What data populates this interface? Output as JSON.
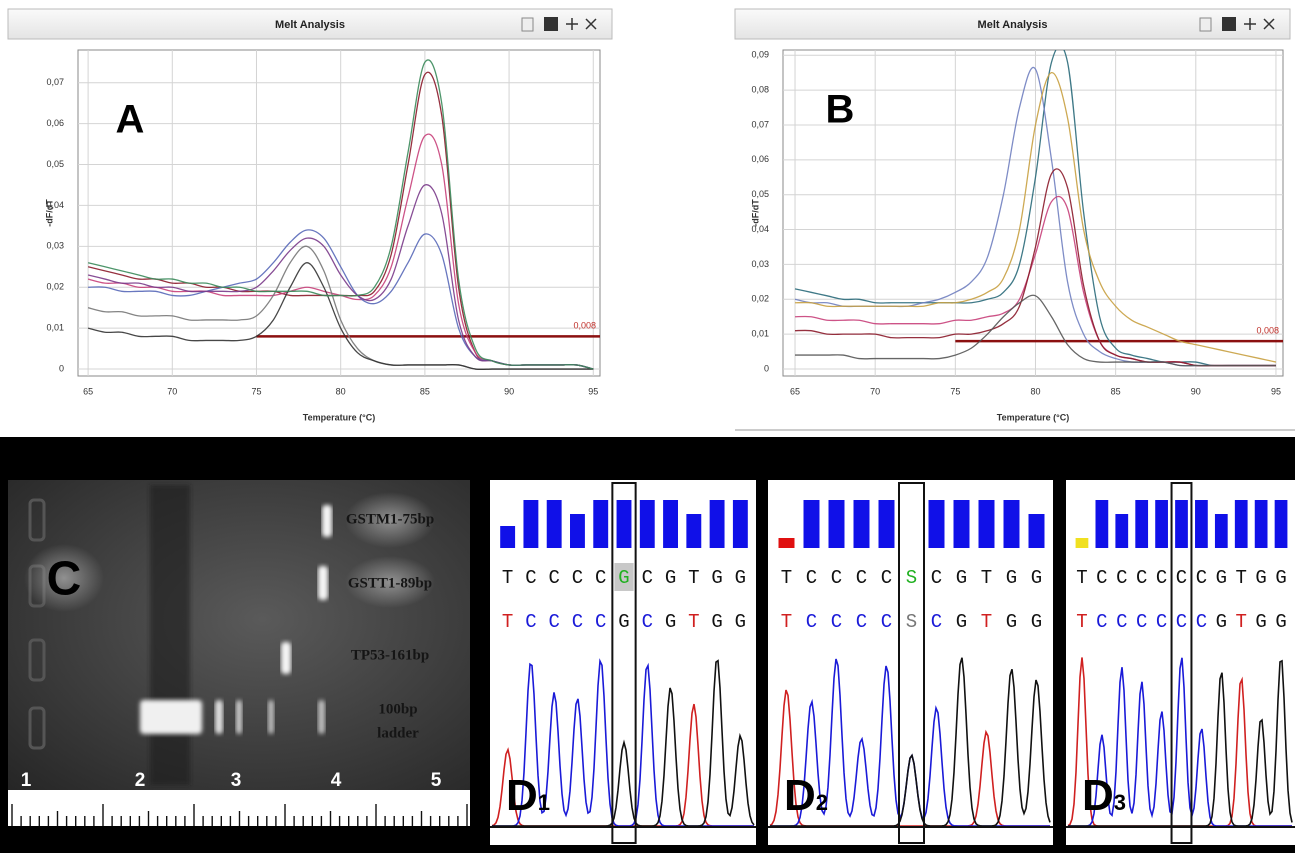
{
  "chart_data": [
    {
      "type": "line",
      "title": "Melt Analysis",
      "panel_label": "A",
      "xlabel": "Temperature (°C)",
      "ylabel": "-dF/dT",
      "x": [
        65,
        66,
        67,
        68,
        69,
        70,
        71,
        72,
        73,
        74,
        75,
        76,
        77,
        78,
        79,
        80,
        81,
        82,
        83,
        84,
        85,
        86,
        87,
        88,
        89,
        90,
        91,
        92,
        93,
        94,
        95
      ],
      "xlim": [
        64.4,
        95.4
      ],
      "ylim": [
        -0.0017,
        0.078
      ],
      "xticks": [
        65,
        70,
        75,
        80,
        85,
        90,
        95
      ],
      "yticks": [
        0,
        {
          "value": 0.01,
          "label": "0,01"
        },
        {
          "value": 0.02,
          "label": "0,02"
        },
        {
          "value": 0.03,
          "label": "0,03"
        },
        {
          "value": 0.04,
          "label": "0,04"
        },
        {
          "value": 0.05,
          "label": "0,05"
        },
        {
          "value": 0.06,
          "label": "0,06"
        },
        {
          "value": 0.07,
          "label": "0,07"
        }
      ],
      "grid": true,
      "threshold": {
        "value": 0.008,
        "label": "0,008",
        "x_start": 75
      },
      "series": [
        {
          "color": "#8b1a2a",
          "values": [
            0.025,
            0.024,
            0.023,
            0.022,
            0.022,
            0.021,
            0.021,
            0.02,
            0.02,
            0.019,
            0.019,
            0.019,
            0.018,
            0.018,
            0.018,
            0.018,
            0.018,
            0.019,
            0.028,
            0.05,
            0.072,
            0.062,
            0.02,
            0.004,
            0.002,
            0.001,
            0.001,
            0.001,
            0.001,
            0.001,
            0.0
          ]
        },
        {
          "color": "#c8407a",
          "values": [
            0.022,
            0.021,
            0.021,
            0.02,
            0.02,
            0.019,
            0.019,
            0.019,
            0.018,
            0.018,
            0.018,
            0.018,
            0.019,
            0.02,
            0.019,
            0.018,
            0.017,
            0.018,
            0.025,
            0.042,
            0.057,
            0.05,
            0.016,
            0.004,
            0.002,
            0.001,
            0.001,
            0.001,
            0.001,
            0.001,
            0.0
          ]
        },
        {
          "color": "#5868b8",
          "values": [
            0.02,
            0.02,
            0.019,
            0.019,
            0.019,
            0.018,
            0.018,
            0.019,
            0.02,
            0.021,
            0.022,
            0.026,
            0.031,
            0.034,
            0.032,
            0.025,
            0.018,
            0.016,
            0.019,
            0.026,
            0.033,
            0.028,
            0.01,
            0.003,
            0.002,
            0.001,
            0.001,
            0.001,
            0.001,
            0.001,
            0.0
          ]
        },
        {
          "color": "#7a3a8a",
          "values": [
            0.023,
            0.022,
            0.021,
            0.021,
            0.02,
            0.02,
            0.019,
            0.019,
            0.019,
            0.019,
            0.02,
            0.024,
            0.029,
            0.032,
            0.03,
            0.023,
            0.018,
            0.017,
            0.022,
            0.035,
            0.045,
            0.038,
            0.012,
            0.003,
            0.002,
            0.001,
            0.001,
            0.001,
            0.001,
            0.001,
            0.0
          ]
        },
        {
          "color": "#777777",
          "values": [
            0.015,
            0.014,
            0.014,
            0.013,
            0.013,
            0.013,
            0.012,
            0.012,
            0.012,
            0.012,
            0.013,
            0.018,
            0.026,
            0.03,
            0.024,
            0.012,
            0.005,
            0.002,
            0.001,
            0.001,
            0.001,
            0.001,
            0.001,
            0.0,
            0.0,
            0.0,
            0.0,
            0.0,
            0.0,
            0.0,
            0.0
          ]
        },
        {
          "color": "#333333",
          "values": [
            0.01,
            0.009,
            0.009,
            0.008,
            0.008,
            0.008,
            0.007,
            0.007,
            0.007,
            0.007,
            0.008,
            0.012,
            0.02,
            0.026,
            0.02,
            0.01,
            0.004,
            0.002,
            0.001,
            0.001,
            0.001,
            0.001,
            0.001,
            0.0,
            0.0,
            0.0,
            0.0,
            0.0,
            0.0,
            0.0,
            0.0
          ]
        },
        {
          "color": "#3a8a5a",
          "values": [
            0.026,
            0.025,
            0.024,
            0.023,
            0.022,
            0.022,
            0.021,
            0.021,
            0.02,
            0.02,
            0.019,
            0.019,
            0.019,
            0.019,
            0.018,
            0.018,
            0.018,
            0.02,
            0.03,
            0.053,
            0.075,
            0.065,
            0.022,
            0.005,
            0.002,
            0.001,
            0.001,
            0.001,
            0.001,
            0.001,
            0.0
          ]
        }
      ]
    },
    {
      "type": "line",
      "title": "Melt Analysis",
      "panel_label": "B",
      "xlabel": "Temperature (°C)",
      "ylabel": "-dF/dT",
      "x": [
        65,
        66,
        67,
        68,
        69,
        70,
        71,
        72,
        73,
        74,
        75,
        76,
        77,
        78,
        79,
        80,
        81,
        82,
        83,
        84,
        85,
        86,
        87,
        88,
        89,
        90,
        91,
        92,
        93,
        94,
        95
      ],
      "xlim": [
        64.25,
        95.44
      ],
      "ylim": [
        -0.002,
        0.0915
      ],
      "xticks": [
        65,
        70,
        75,
        80,
        85,
        90,
        95
      ],
      "yticks": [
        0,
        {
          "value": 0.01,
          "label": "0,01"
        },
        {
          "value": 0.02,
          "label": "0,02"
        },
        {
          "value": 0.03,
          "label": "0,03"
        },
        {
          "value": 0.04,
          "label": "0,04"
        },
        {
          "value": 0.05,
          "label": "0,05"
        },
        {
          "value": 0.06,
          "label": "0,06"
        },
        {
          "value": 0.07,
          "label": "0,07"
        },
        {
          "value": 0.08,
          "label": "0,08"
        },
        {
          "value": 0.09,
          "label": "0,09"
        }
      ],
      "grid": true,
      "threshold": {
        "value": 0.008,
        "label": "0,008",
        "x_start": 75
      },
      "series": [
        {
          "color": "#2a6a7a",
          "values": [
            0.023,
            0.022,
            0.021,
            0.02,
            0.02,
            0.019,
            0.019,
            0.019,
            0.019,
            0.019,
            0.019,
            0.019,
            0.02,
            0.022,
            0.03,
            0.055,
            0.088,
            0.088,
            0.045,
            0.015,
            0.006,
            0.004,
            0.003,
            0.002,
            0.002,
            0.002,
            0.001,
            0.001,
            0.001,
            0.001,
            0.001
          ]
        },
        {
          "color": "#7080c0",
          "values": [
            0.02,
            0.019,
            0.019,
            0.018,
            0.018,
            0.018,
            0.018,
            0.018,
            0.019,
            0.02,
            0.022,
            0.025,
            0.032,
            0.05,
            0.075,
            0.086,
            0.06,
            0.025,
            0.01,
            0.005,
            0.003,
            0.002,
            0.002,
            0.002,
            0.001,
            0.001,
            0.001,
            0.001,
            0.001,
            0.001,
            0.001
          ]
        },
        {
          "color": "#c8407a",
          "values": [
            0.015,
            0.015,
            0.014,
            0.014,
            0.014,
            0.013,
            0.013,
            0.013,
            0.013,
            0.013,
            0.014,
            0.014,
            0.015,
            0.016,
            0.02,
            0.033,
            0.048,
            0.046,
            0.022,
            0.008,
            0.004,
            0.003,
            0.002,
            0.002,
            0.002,
            0.001,
            0.001,
            0.001,
            0.001,
            0.001,
            0.001
          ]
        },
        {
          "color": "#8b1a2a",
          "values": [
            0.011,
            0.011,
            0.01,
            0.01,
            0.01,
            0.01,
            0.009,
            0.009,
            0.009,
            0.009,
            0.01,
            0.01,
            0.011,
            0.013,
            0.018,
            0.035,
            0.056,
            0.052,
            0.024,
            0.008,
            0.004,
            0.003,
            0.002,
            0.002,
            0.002,
            0.001,
            0.001,
            0.001,
            0.001,
            0.001,
            0.001
          ]
        },
        {
          "color": "#c8a040",
          "values": [
            0.019,
            0.019,
            0.018,
            0.018,
            0.018,
            0.018,
            0.018,
            0.018,
            0.018,
            0.019,
            0.019,
            0.02,
            0.022,
            0.026,
            0.04,
            0.07,
            0.085,
            0.072,
            0.04,
            0.025,
            0.018,
            0.014,
            0.012,
            0.01,
            0.008,
            0.007,
            0.006,
            0.005,
            0.004,
            0.003,
            0.002
          ]
        },
        {
          "color": "#555555",
          "values": [
            0.004,
            0.004,
            0.004,
            0.004,
            0.003,
            0.003,
            0.003,
            0.003,
            0.003,
            0.003,
            0.004,
            0.006,
            0.01,
            0.015,
            0.019,
            0.021,
            0.015,
            0.007,
            0.003,
            0.002,
            0.002,
            0.002,
            0.002,
            0.002,
            0.001,
            0.001,
            0.001,
            0.001,
            0.001,
            0.001,
            0.001
          ]
        }
      ]
    }
  ],
  "gel": {
    "panel_label": "C",
    "band_labels": [
      "GSTM1-75bp",
      "GSTT1-89bp",
      "TP53-161bp"
    ],
    "ladder_label": [
      "100bp",
      "ladder"
    ],
    "ruler": [
      "1",
      "2",
      "3",
      "4",
      "5"
    ]
  },
  "chromatograms": [
    {
      "letter": "D",
      "subscript": "1",
      "top": [
        "T",
        "C",
        "C",
        "C",
        "C",
        "G",
        "C",
        "G",
        "T",
        "G",
        "G"
      ],
      "bottom": [
        "T",
        "C",
        "C",
        "C",
        "C",
        "G",
        "C",
        "G",
        "T",
        "G",
        "G"
      ]
    },
    {
      "letter": "D",
      "subscript": "2",
      "top": [
        "T",
        "C",
        "C",
        "C",
        "C",
        "S",
        "C",
        "G",
        "T",
        "G",
        "G"
      ],
      "bottom": [
        "T",
        "C",
        "C",
        "C",
        "C",
        "S",
        "C",
        "G",
        "T",
        "G",
        "G"
      ]
    },
    {
      "letter": "D",
      "subscript": "3",
      "top": [
        "T",
        "C",
        "C",
        "C",
        "C",
        "C",
        "C",
        "G",
        "T",
        "G",
        "G"
      ],
      "bottom": [
        "T",
        "C",
        "C",
        "C",
        "C",
        "C",
        "C",
        "G",
        "T",
        "G",
        "G"
      ]
    }
  ]
}
